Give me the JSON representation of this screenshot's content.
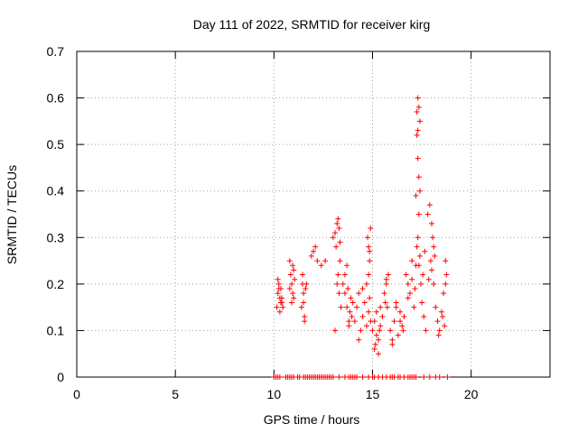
{
  "chart_data": {
    "type": "scatter",
    "title": "Day 111 of 2022, SRMTID for receiver kirg",
    "xlabel": "GPS time / hours",
    "ylabel": "SRMTID / TECUs",
    "xlim": [
      0,
      24
    ],
    "ylim": [
      0,
      0.7
    ],
    "xticks": [
      0,
      5,
      10,
      15,
      20
    ],
    "yticks": [
      0,
      0.1,
      0.2,
      0.3,
      0.4,
      0.5,
      0.6,
      0.7
    ],
    "xtick_labels": [
      "0",
      "5",
      "10",
      "15",
      "20"
    ],
    "ytick_labels": [
      "0",
      "0.1",
      "0.2",
      "0.3",
      "0.4",
      "0.5",
      "0.6",
      "0.7"
    ],
    "grid": true,
    "marker": "+",
    "color": "#ff0000",
    "series": [
      {
        "name": "SRMTID",
        "x": [
          10.15,
          10.2,
          10.25,
          10.3,
          10.35,
          10.4,
          10.45,
          10.2,
          10.3,
          10.4,
          10.25,
          10.35,
          10.8,
          10.85,
          10.9,
          10.95,
          11.0,
          10.9,
          11.05,
          10.8,
          10.95,
          11.0,
          11.4,
          11.45,
          11.5,
          11.55,
          11.6,
          11.5,
          11.65,
          11.55,
          11.45,
          11.9,
          12.0,
          12.1,
          12.2,
          12.4,
          12.6,
          13.0,
          13.1,
          13.15,
          13.2,
          13.25,
          13.3,
          13.35,
          13.2,
          13.3,
          13.4,
          13.1,
          13.25,
          13.35,
          13.5,
          13.6,
          13.7,
          13.8,
          13.9,
          14.0,
          13.6,
          13.75,
          13.85,
          13.95,
          13.7,
          13.8,
          14.1,
          14.2,
          14.3,
          14.4,
          14.5,
          14.6,
          14.7,
          14.8,
          14.9,
          14.3,
          14.5,
          14.7,
          14.85,
          14.75,
          14.8,
          14.85,
          14.9,
          14.8,
          14.85,
          15.0,
          15.1,
          15.2,
          15.3,
          15.4,
          15.5,
          15.1,
          15.2,
          15.3,
          15.4,
          15.15,
          15.35,
          15.6,
          15.7,
          15.8,
          15.75,
          15.65,
          15.7,
          15.9,
          16.0,
          16.1,
          16.2,
          16.3,
          16.4,
          16.5,
          16.6,
          16.0,
          16.2,
          16.4,
          16.55,
          16.7,
          16.8,
          16.9,
          17.0,
          17.1,
          17.2,
          16.8,
          17.0,
          17.15,
          17.2,
          17.25,
          17.3,
          17.35,
          17.4,
          17.3,
          17.35,
          17.4,
          17.25,
          17.3,
          17.35,
          17.3,
          17.4,
          17.35,
          17.25,
          17.45,
          17.5,
          17.6,
          17.7,
          17.55,
          17.65,
          17.8,
          17.9,
          18.0,
          18.1,
          18.05,
          17.95,
          18.1,
          18.15,
          17.85,
          18.0,
          18.2,
          18.3,
          18.4,
          18.5,
          18.6,
          18.7,
          18.75,
          18.35,
          18.55,
          18.65,
          18.7
        ],
        "y": [
          0.15,
          0.18,
          0.2,
          0.17,
          0.19,
          0.16,
          0.15,
          0.21,
          0.14,
          0.17,
          0.19,
          0.16,
          0.25,
          0.22,
          0.2,
          0.18,
          0.23,
          0.16,
          0.21,
          0.19,
          0.24,
          0.17,
          0.15,
          0.2,
          0.18,
          0.13,
          0.19,
          0.16,
          0.2,
          0.12,
          0.22,
          0.26,
          0.27,
          0.28,
          0.25,
          0.24,
          0.25,
          0.3,
          0.31,
          0.28,
          0.33,
          0.34,
          0.32,
          0.29,
          0.2,
          0.18,
          0.15,
          0.1,
          0.22,
          0.25,
          0.2,
          0.18,
          0.15,
          0.12,
          0.17,
          0.16,
          0.22,
          0.19,
          0.14,
          0.13,
          0.24,
          0.11,
          0.12,
          0.15,
          0.18,
          0.1,
          0.13,
          0.16,
          0.11,
          0.14,
          0.12,
          0.08,
          0.19,
          0.2,
          0.17,
          0.3,
          0.28,
          0.25,
          0.32,
          0.22,
          0.27,
          0.1,
          0.12,
          0.14,
          0.08,
          0.11,
          0.13,
          0.06,
          0.09,
          0.05,
          0.15,
          0.07,
          0.1,
          0.18,
          0.2,
          0.22,
          0.15,
          0.16,
          0.21,
          0.1,
          0.08,
          0.12,
          0.15,
          0.09,
          0.14,
          0.11,
          0.13,
          0.07,
          0.16,
          0.12,
          0.1,
          0.22,
          0.2,
          0.18,
          0.25,
          0.15,
          0.24,
          0.17,
          0.21,
          0.19,
          0.39,
          0.52,
          0.6,
          0.58,
          0.55,
          0.47,
          0.43,
          0.4,
          0.57,
          0.53,
          0.35,
          0.3,
          0.26,
          0.24,
          0.28,
          0.2,
          0.16,
          0.13,
          0.1,
          0.22,
          0.27,
          0.35,
          0.37,
          0.33,
          0.28,
          0.3,
          0.25,
          0.2,
          0.26,
          0.21,
          0.23,
          0.15,
          0.12,
          0.1,
          0.14,
          0.18,
          0.2,
          0.22,
          0.09,
          0.13,
          0.11,
          0.25
        ],
        "baseline_x": [
          10.0,
          10.1,
          10.2,
          10.3,
          10.6,
          10.7,
          10.8,
          10.9,
          11.0,
          11.2,
          11.3,
          11.5,
          11.6,
          11.7,
          11.8,
          11.9,
          12.0,
          12.1,
          12.2,
          12.3,
          12.4,
          12.5,
          12.6,
          12.7,
          12.8,
          12.9,
          13.0,
          13.3,
          13.6,
          13.8,
          13.9,
          14.0,
          14.1,
          14.2,
          14.5,
          14.8,
          15.0,
          15.1,
          15.3,
          15.5,
          15.7,
          15.9,
          16.0,
          16.1,
          16.3,
          16.4,
          16.6,
          16.8,
          16.9,
          17.0,
          17.1,
          17.2,
          17.6,
          17.9,
          18.2,
          18.4,
          18.8
        ],
        "baseline_y": 0
      }
    ]
  }
}
